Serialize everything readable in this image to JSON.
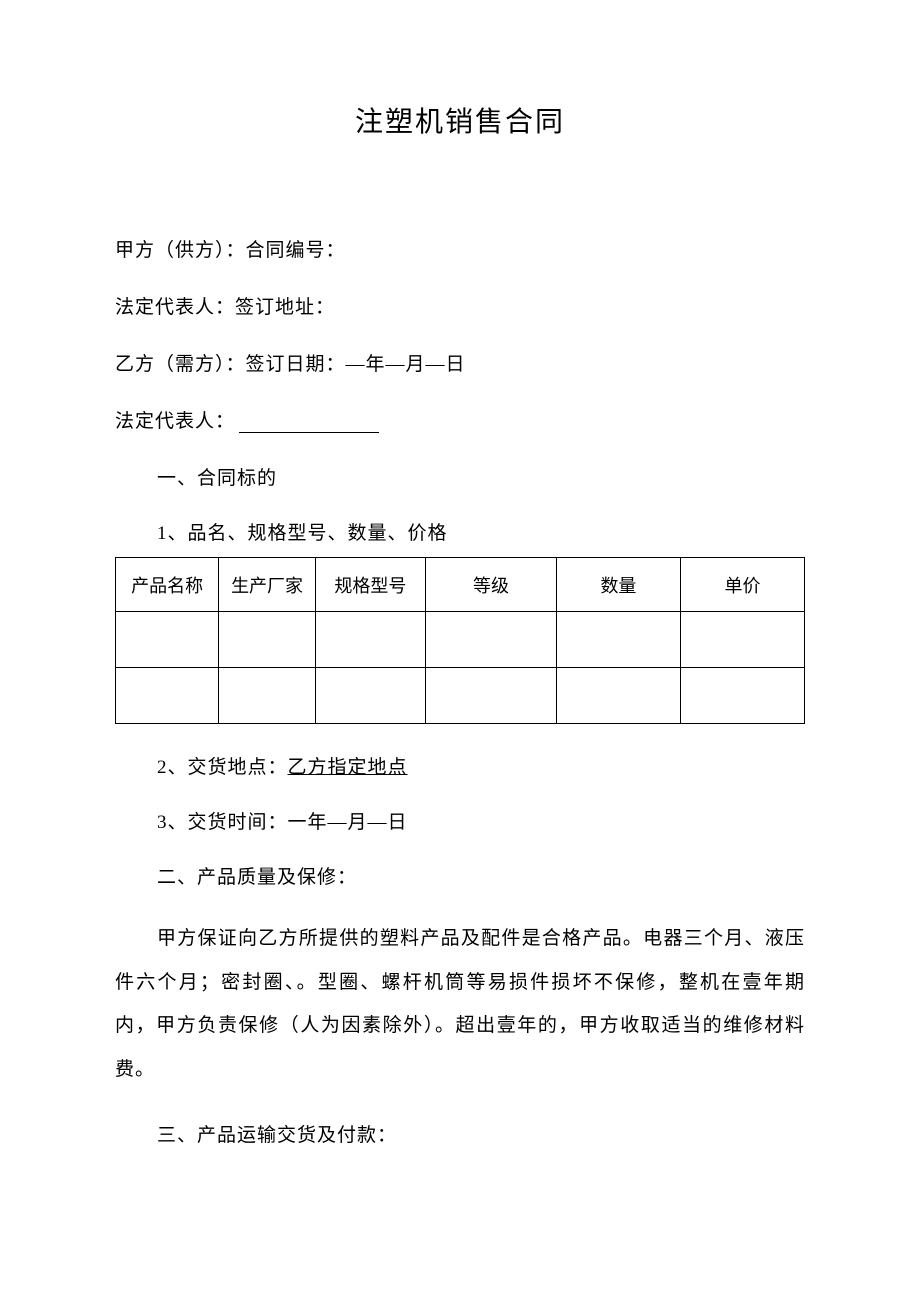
{
  "title": "注塑机销售合同",
  "parties": {
    "line1": "甲方（供方）：合同编号：",
    "line2": "法定代表人：签订地址：",
    "line3": "乙方（需方）：签订日期：—年—月—日",
    "line4": "法定代表人："
  },
  "sections": {
    "s1_heading": "一、合同标的",
    "s1_item1": "1、品名、规格型号、数量、价格",
    "s1_item2_prefix": "2、交货地点：",
    "s1_item2_underlined": "乙方指定地点",
    "s1_item3": "3、交货时间：一年—月—日",
    "s2_heading": "二、产品质量及保修：",
    "s2_body": "甲方保证向乙方所提供的塑料产品及配件是合格产品。电器三个月、液压件六个月；密封圈、。型圈、螺杆机筒等易损件损坏不保修，整机在壹年期内，甲方负责保修（人为因素除外）。超出壹年的，甲方收取适当的维修材料费。",
    "s3_heading": "三、产品运输交货及付款："
  },
  "table": {
    "columns": [
      "产品名称",
      "生产厂家",
      "规格型号",
      "等级",
      "数量",
      "单价"
    ],
    "rows": [
      [
        "",
        "",
        "",
        "",
        "",
        ""
      ],
      [
        "",
        "",
        "",
        "",
        "",
        ""
      ]
    ],
    "col_classes": [
      "col1",
      "col2",
      "col3",
      "col4",
      "col5",
      "col6"
    ],
    "border_color": "#000000",
    "header_fontsize": 18,
    "cell_height_header": 54,
    "cell_height_body": 56
  },
  "typography": {
    "title_fontsize": 28,
    "body_fontsize": 19,
    "line_height": 2.3,
    "font_family": "SimSun",
    "text_color": "#000000",
    "background_color": "#ffffff"
  }
}
